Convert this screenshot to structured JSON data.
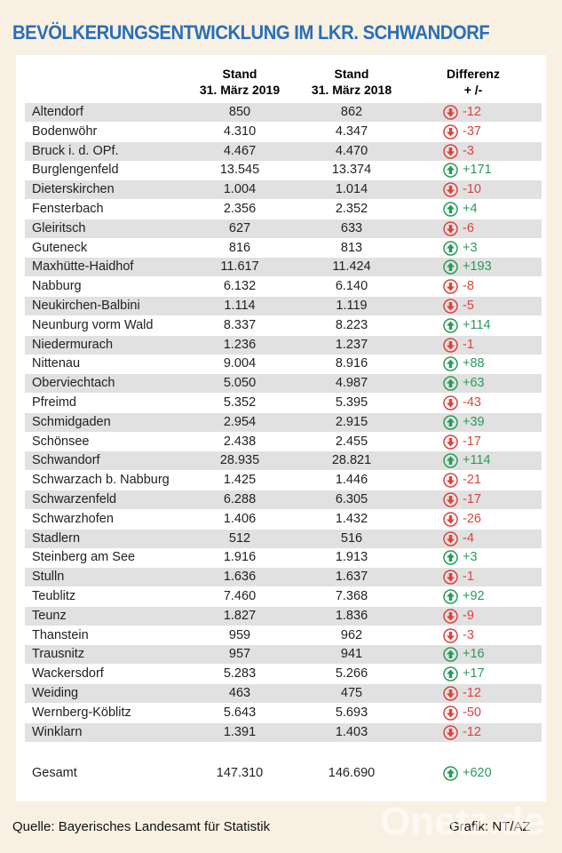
{
  "header": {
    "title": "BEVÖLKERUNGSENTWICKLUNG IM LKR. SCHWANDORF"
  },
  "table": {
    "columns": [
      [
        "Stand",
        "31. März 2019"
      ],
      [
        "Stand",
        "31. März 2018"
      ],
      [
        "Differenz",
        "+ /-"
      ]
    ],
    "rows": [
      [
        "Altendorf",
        "850",
        "862",
        "-12"
      ],
      [
        "Bodenwöhr",
        "4.310",
        "4.347",
        "-37"
      ],
      [
        "Bruck i. d. OPf.",
        "4.467",
        "4.470",
        "-3"
      ],
      [
        "Burglengenfeld",
        "13.545",
        "13.374",
        "+171"
      ],
      [
        "Dieterskirchen",
        "1.004",
        "1.014",
        "-10"
      ],
      [
        "Fensterbach",
        "2.356",
        "2.352",
        "+4"
      ],
      [
        "Gleiritsch",
        "627",
        "633",
        "-6"
      ],
      [
        "Guteneck",
        "816",
        "813",
        "+3"
      ],
      [
        "Maxhütte-Haidhof",
        "11.617",
        "11.424",
        "+193"
      ],
      [
        "Nabburg",
        "6.132",
        "6.140",
        "-8"
      ],
      [
        "Neukirchen-Balbini",
        "1.114",
        "1.119",
        "-5"
      ],
      [
        "Neunburg vorm Wald",
        "8.337",
        "8.223",
        "+114"
      ],
      [
        "Niedermurach",
        "1.236",
        "1.237",
        "-1"
      ],
      [
        "Nittenau",
        "9.004",
        "8.916",
        "+88"
      ],
      [
        "Oberviechtach",
        "5.050",
        "4.987",
        "+63"
      ],
      [
        "Pfreimd",
        "5.352",
        "5.395",
        "-43"
      ],
      [
        "Schmidgaden",
        "2.954",
        "2.915",
        "+39"
      ],
      [
        "Schönsee",
        "2.438",
        "2.455",
        "-17"
      ],
      [
        "Schwandorf",
        "28.935",
        "28.821",
        "+114"
      ],
      [
        "Schwarzach b. Nabburg",
        "1.425",
        "1.446",
        "-21"
      ],
      [
        "Schwarzenfeld",
        "6.288",
        "6.305",
        "-17"
      ],
      [
        "Schwarzhofen",
        "1.406",
        "1.432",
        "-26"
      ],
      [
        "Stadlern",
        "512",
        "516",
        "-4"
      ],
      [
        "Steinberg am See",
        "1.916",
        "1.913",
        "+3"
      ],
      [
        "Stulln",
        "1.636",
        "1.637",
        "-1"
      ],
      [
        "Teublitz",
        "7.460",
        "7.368",
        "+92"
      ],
      [
        "Teunz",
        "1.827",
        "1.836",
        "-9"
      ],
      [
        "Thanstein",
        "959",
        "962",
        "-3"
      ],
      [
        "Trausnitz",
        "957",
        "941",
        "+16"
      ],
      [
        "Wackersdorf",
        "5.283",
        "5.266",
        "+17"
      ],
      [
        "Weiding",
        "463",
        "475",
        "-12"
      ],
      [
        "Wernberg-Köblitz",
        "5.643",
        "5.693",
        "-50"
      ],
      [
        "Winklarn",
        "1.391",
        "1.403",
        "-12"
      ]
    ],
    "total": [
      "Gesamt",
      "147.310",
      "146.690",
      "+620"
    ]
  },
  "footer": {
    "source": "Quelle: Bayerisches Landesamt für Statistik",
    "credit": "Grafik: NT/AZ",
    "watermark": "Onetz.de"
  }
}
